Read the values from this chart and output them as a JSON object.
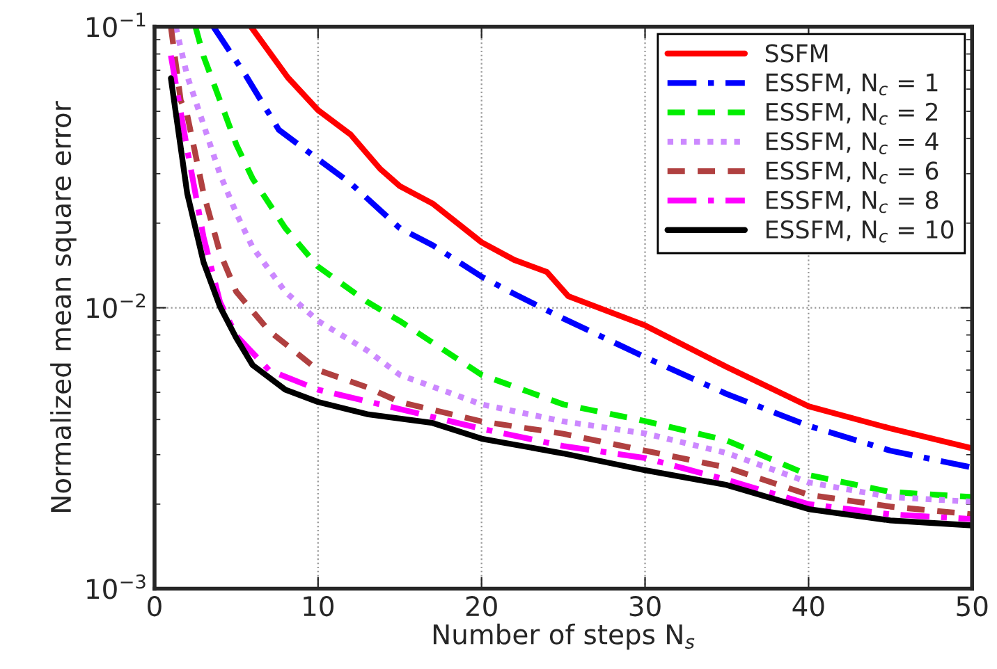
{
  "chart_data": {
    "type": "line",
    "xlabel": "Number of steps N$_{s}$",
    "ylabel": "Normalized mean square error",
    "xlim": [
      0,
      50
    ],
    "xticks": [
      0,
      10,
      20,
      30,
      40,
      50
    ],
    "ylim": [
      0.001,
      0.1
    ],
    "yticks": [
      {
        "value": 0.001,
        "label": "10$^{−3}$"
      },
      {
        "value": 0.01,
        "label": "10$^{−2}$"
      },
      {
        "value": 0.1,
        "label": "10$^{−1}$"
      }
    ],
    "log": "y",
    "grid": true,
    "legend": "top right",
    "marker": "none",
    "series": [
      {
        "name": "SSFM",
        "color": "#ff0000",
        "line_style": "solid",
        "x": [
          5.9,
          8.15,
          10,
          12,
          13.8,
          15,
          17,
          20,
          22,
          24,
          25.3,
          30,
          35,
          40,
          45,
          50
        ],
        "values": [
          0.1,
          0.066,
          0.0505,
          0.0413,
          0.0312,
          0.0271,
          0.0235,
          0.0171,
          0.0148,
          0.0134,
          0.011,
          0.00865,
          0.00615,
          0.00446,
          0.00372,
          0.00316
        ]
      },
      {
        "name": "ESSFM, N$_{c}$ = 1",
        "color": "#0000ff",
        "line_style": "dashdot",
        "x": [
          3.6,
          5.6,
          7.6,
          10,
          12,
          15,
          17,
          20,
          22,
          25,
          30,
          35,
          40,
          45,
          50
        ],
        "values": [
          0.1,
          0.0668,
          0.043,
          0.0338,
          0.0277,
          0.0192,
          0.0167,
          0.0129,
          0.0112,
          0.00916,
          0.00667,
          0.00493,
          0.0038,
          0.0031,
          0.0027
        ]
      },
      {
        "name": "ESSFM, N$_{c}$ = 2",
        "color": "#00ee00",
        "line_style": "dashed",
        "x": [
          2.5,
          3,
          4,
          5,
          6,
          8,
          10,
          13,
          15,
          20,
          25,
          30,
          35,
          40,
          45,
          50
        ],
        "values": [
          0.1,
          0.0785,
          0.0547,
          0.0381,
          0.0288,
          0.0192,
          0.014,
          0.0105,
          0.00897,
          0.00577,
          0.00453,
          0.00395,
          0.00337,
          0.00254,
          0.00221,
          0.00212
        ]
      },
      {
        "name": "ESSFM, N$_{c}$ = 4",
        "color": "#cc88ff",
        "line_style": "dotted",
        "x": [
          1.3,
          2,
          3,
          4,
          5,
          6,
          8,
          10,
          13,
          15,
          20,
          25,
          30,
          35,
          40,
          45,
          50
        ],
        "values": [
          0.1,
          0.0668,
          0.0448,
          0.0299,
          0.0217,
          0.0164,
          0.0114,
          0.00897,
          0.00705,
          0.00577,
          0.00453,
          0.00394,
          0.00357,
          0.00304,
          0.00239,
          0.00212,
          0.00204
        ]
      },
      {
        "name": "ESSFM, N$_{c}$ = 6",
        "color": "#b04040",
        "line_style": "dashed",
        "x": [
          1,
          1.6,
          2,
          3,
          4,
          5,
          7,
          10,
          13,
          15,
          20,
          25,
          30,
          35,
          40,
          45,
          50
        ],
        "values": [
          0.1,
          0.0547,
          0.0485,
          0.0255,
          0.0157,
          0.0114,
          0.00828,
          0.006,
          0.00521,
          0.00462,
          0.00394,
          0.00356,
          0.0031,
          0.0027,
          0.00216,
          0.00196,
          0.00184
        ]
      },
      {
        "name": "ESSFM, N$_{c}$ = 8",
        "color": "#ff00ff",
        "line_style": "dashdot",
        "x": [
          1,
          2,
          3,
          4,
          5,
          7,
          10,
          15,
          20,
          25,
          30,
          35,
          40,
          45,
          50
        ],
        "values": [
          0.079,
          0.0366,
          0.0178,
          0.0105,
          0.00796,
          0.006,
          0.00511,
          0.00436,
          0.00371,
          0.00322,
          0.00292,
          0.00244,
          0.002,
          0.00184,
          0.00177
        ]
      },
      {
        "name": "ESSFM, N$_{c}$ = 10",
        "color": "#000000",
        "line_style": "solid",
        "x": [
          1,
          2,
          3,
          4,
          5,
          6,
          8,
          10,
          13,
          17,
          20,
          25,
          30,
          35,
          40,
          45,
          50
        ],
        "values": [
          0.0656,
          0.0255,
          0.0145,
          0.0101,
          0.0078,
          0.00625,
          0.00511,
          0.00462,
          0.00418,
          0.00389,
          0.00342,
          0.00303,
          0.00264,
          0.00234,
          0.00192,
          0.00175,
          0.00168
        ]
      }
    ]
  }
}
